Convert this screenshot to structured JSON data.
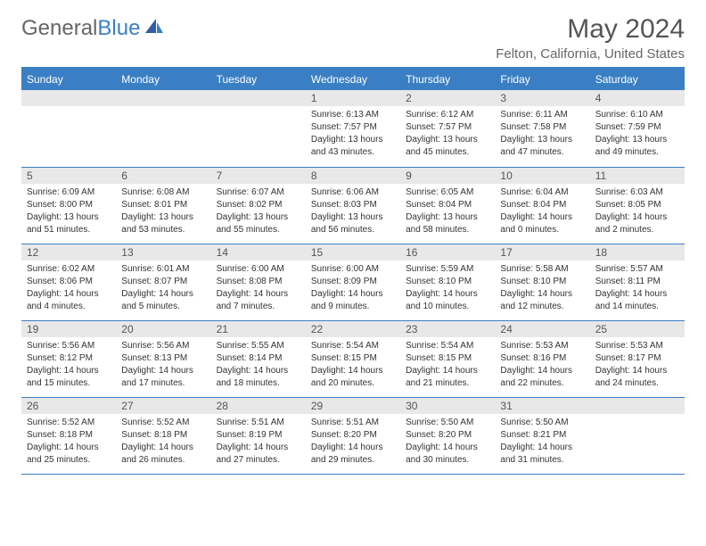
{
  "logo": {
    "text_gray": "General",
    "text_blue": "Blue"
  },
  "title": {
    "month": "May 2024",
    "location": "Felton, California, United States"
  },
  "colors": {
    "header_bg": "#3a7fc4",
    "header_text": "#ffffff",
    "daynum_bg": "#e8e8e8",
    "daynum_text": "#555555",
    "border": "#3a7fc4",
    "body_text": "#333333",
    "title_text": "#555555",
    "location_text": "#666666",
    "logo_gray": "#666666",
    "logo_blue": "#3a7fc4",
    "background": "#ffffff"
  },
  "typography": {
    "month_title_size": 30,
    "location_size": 15,
    "weekday_size": 12,
    "daynum_size": 12,
    "cell_size": 10,
    "logo_size": 24
  },
  "weekdays": [
    "Sunday",
    "Monday",
    "Tuesday",
    "Wednesday",
    "Thursday",
    "Friday",
    "Saturday"
  ],
  "weeks": [
    [
      {
        "day": "",
        "sunrise": "",
        "sunset": "",
        "daylight": ""
      },
      {
        "day": "",
        "sunrise": "",
        "sunset": "",
        "daylight": ""
      },
      {
        "day": "",
        "sunrise": "",
        "sunset": "",
        "daylight": ""
      },
      {
        "day": "1",
        "sunrise": "Sunrise: 6:13 AM",
        "sunset": "Sunset: 7:57 PM",
        "daylight": "Daylight: 13 hours and 43 minutes."
      },
      {
        "day": "2",
        "sunrise": "Sunrise: 6:12 AM",
        "sunset": "Sunset: 7:57 PM",
        "daylight": "Daylight: 13 hours and 45 minutes."
      },
      {
        "day": "3",
        "sunrise": "Sunrise: 6:11 AM",
        "sunset": "Sunset: 7:58 PM",
        "daylight": "Daylight: 13 hours and 47 minutes."
      },
      {
        "day": "4",
        "sunrise": "Sunrise: 6:10 AM",
        "sunset": "Sunset: 7:59 PM",
        "daylight": "Daylight: 13 hours and 49 minutes."
      }
    ],
    [
      {
        "day": "5",
        "sunrise": "Sunrise: 6:09 AM",
        "sunset": "Sunset: 8:00 PM",
        "daylight": "Daylight: 13 hours and 51 minutes."
      },
      {
        "day": "6",
        "sunrise": "Sunrise: 6:08 AM",
        "sunset": "Sunset: 8:01 PM",
        "daylight": "Daylight: 13 hours and 53 minutes."
      },
      {
        "day": "7",
        "sunrise": "Sunrise: 6:07 AM",
        "sunset": "Sunset: 8:02 PM",
        "daylight": "Daylight: 13 hours and 55 minutes."
      },
      {
        "day": "8",
        "sunrise": "Sunrise: 6:06 AM",
        "sunset": "Sunset: 8:03 PM",
        "daylight": "Daylight: 13 hours and 56 minutes."
      },
      {
        "day": "9",
        "sunrise": "Sunrise: 6:05 AM",
        "sunset": "Sunset: 8:04 PM",
        "daylight": "Daylight: 13 hours and 58 minutes."
      },
      {
        "day": "10",
        "sunrise": "Sunrise: 6:04 AM",
        "sunset": "Sunset: 8:04 PM",
        "daylight": "Daylight: 14 hours and 0 minutes."
      },
      {
        "day": "11",
        "sunrise": "Sunrise: 6:03 AM",
        "sunset": "Sunset: 8:05 PM",
        "daylight": "Daylight: 14 hours and 2 minutes."
      }
    ],
    [
      {
        "day": "12",
        "sunrise": "Sunrise: 6:02 AM",
        "sunset": "Sunset: 8:06 PM",
        "daylight": "Daylight: 14 hours and 4 minutes."
      },
      {
        "day": "13",
        "sunrise": "Sunrise: 6:01 AM",
        "sunset": "Sunset: 8:07 PM",
        "daylight": "Daylight: 14 hours and 5 minutes."
      },
      {
        "day": "14",
        "sunrise": "Sunrise: 6:00 AM",
        "sunset": "Sunset: 8:08 PM",
        "daylight": "Daylight: 14 hours and 7 minutes."
      },
      {
        "day": "15",
        "sunrise": "Sunrise: 6:00 AM",
        "sunset": "Sunset: 8:09 PM",
        "daylight": "Daylight: 14 hours and 9 minutes."
      },
      {
        "day": "16",
        "sunrise": "Sunrise: 5:59 AM",
        "sunset": "Sunset: 8:10 PM",
        "daylight": "Daylight: 14 hours and 10 minutes."
      },
      {
        "day": "17",
        "sunrise": "Sunrise: 5:58 AM",
        "sunset": "Sunset: 8:10 PM",
        "daylight": "Daylight: 14 hours and 12 minutes."
      },
      {
        "day": "18",
        "sunrise": "Sunrise: 5:57 AM",
        "sunset": "Sunset: 8:11 PM",
        "daylight": "Daylight: 14 hours and 14 minutes."
      }
    ],
    [
      {
        "day": "19",
        "sunrise": "Sunrise: 5:56 AM",
        "sunset": "Sunset: 8:12 PM",
        "daylight": "Daylight: 14 hours and 15 minutes."
      },
      {
        "day": "20",
        "sunrise": "Sunrise: 5:56 AM",
        "sunset": "Sunset: 8:13 PM",
        "daylight": "Daylight: 14 hours and 17 minutes."
      },
      {
        "day": "21",
        "sunrise": "Sunrise: 5:55 AM",
        "sunset": "Sunset: 8:14 PM",
        "daylight": "Daylight: 14 hours and 18 minutes."
      },
      {
        "day": "22",
        "sunrise": "Sunrise: 5:54 AM",
        "sunset": "Sunset: 8:15 PM",
        "daylight": "Daylight: 14 hours and 20 minutes."
      },
      {
        "day": "23",
        "sunrise": "Sunrise: 5:54 AM",
        "sunset": "Sunset: 8:15 PM",
        "daylight": "Daylight: 14 hours and 21 minutes."
      },
      {
        "day": "24",
        "sunrise": "Sunrise: 5:53 AM",
        "sunset": "Sunset: 8:16 PM",
        "daylight": "Daylight: 14 hours and 22 minutes."
      },
      {
        "day": "25",
        "sunrise": "Sunrise: 5:53 AM",
        "sunset": "Sunset: 8:17 PM",
        "daylight": "Daylight: 14 hours and 24 minutes."
      }
    ],
    [
      {
        "day": "26",
        "sunrise": "Sunrise: 5:52 AM",
        "sunset": "Sunset: 8:18 PM",
        "daylight": "Daylight: 14 hours and 25 minutes."
      },
      {
        "day": "27",
        "sunrise": "Sunrise: 5:52 AM",
        "sunset": "Sunset: 8:18 PM",
        "daylight": "Daylight: 14 hours and 26 minutes."
      },
      {
        "day": "28",
        "sunrise": "Sunrise: 5:51 AM",
        "sunset": "Sunset: 8:19 PM",
        "daylight": "Daylight: 14 hours and 27 minutes."
      },
      {
        "day": "29",
        "sunrise": "Sunrise: 5:51 AM",
        "sunset": "Sunset: 8:20 PM",
        "daylight": "Daylight: 14 hours and 29 minutes."
      },
      {
        "day": "30",
        "sunrise": "Sunrise: 5:50 AM",
        "sunset": "Sunset: 8:20 PM",
        "daylight": "Daylight: 14 hours and 30 minutes."
      },
      {
        "day": "31",
        "sunrise": "Sunrise: 5:50 AM",
        "sunset": "Sunset: 8:21 PM",
        "daylight": "Daylight: 14 hours and 31 minutes."
      },
      {
        "day": "",
        "sunrise": "",
        "sunset": "",
        "daylight": ""
      }
    ]
  ]
}
